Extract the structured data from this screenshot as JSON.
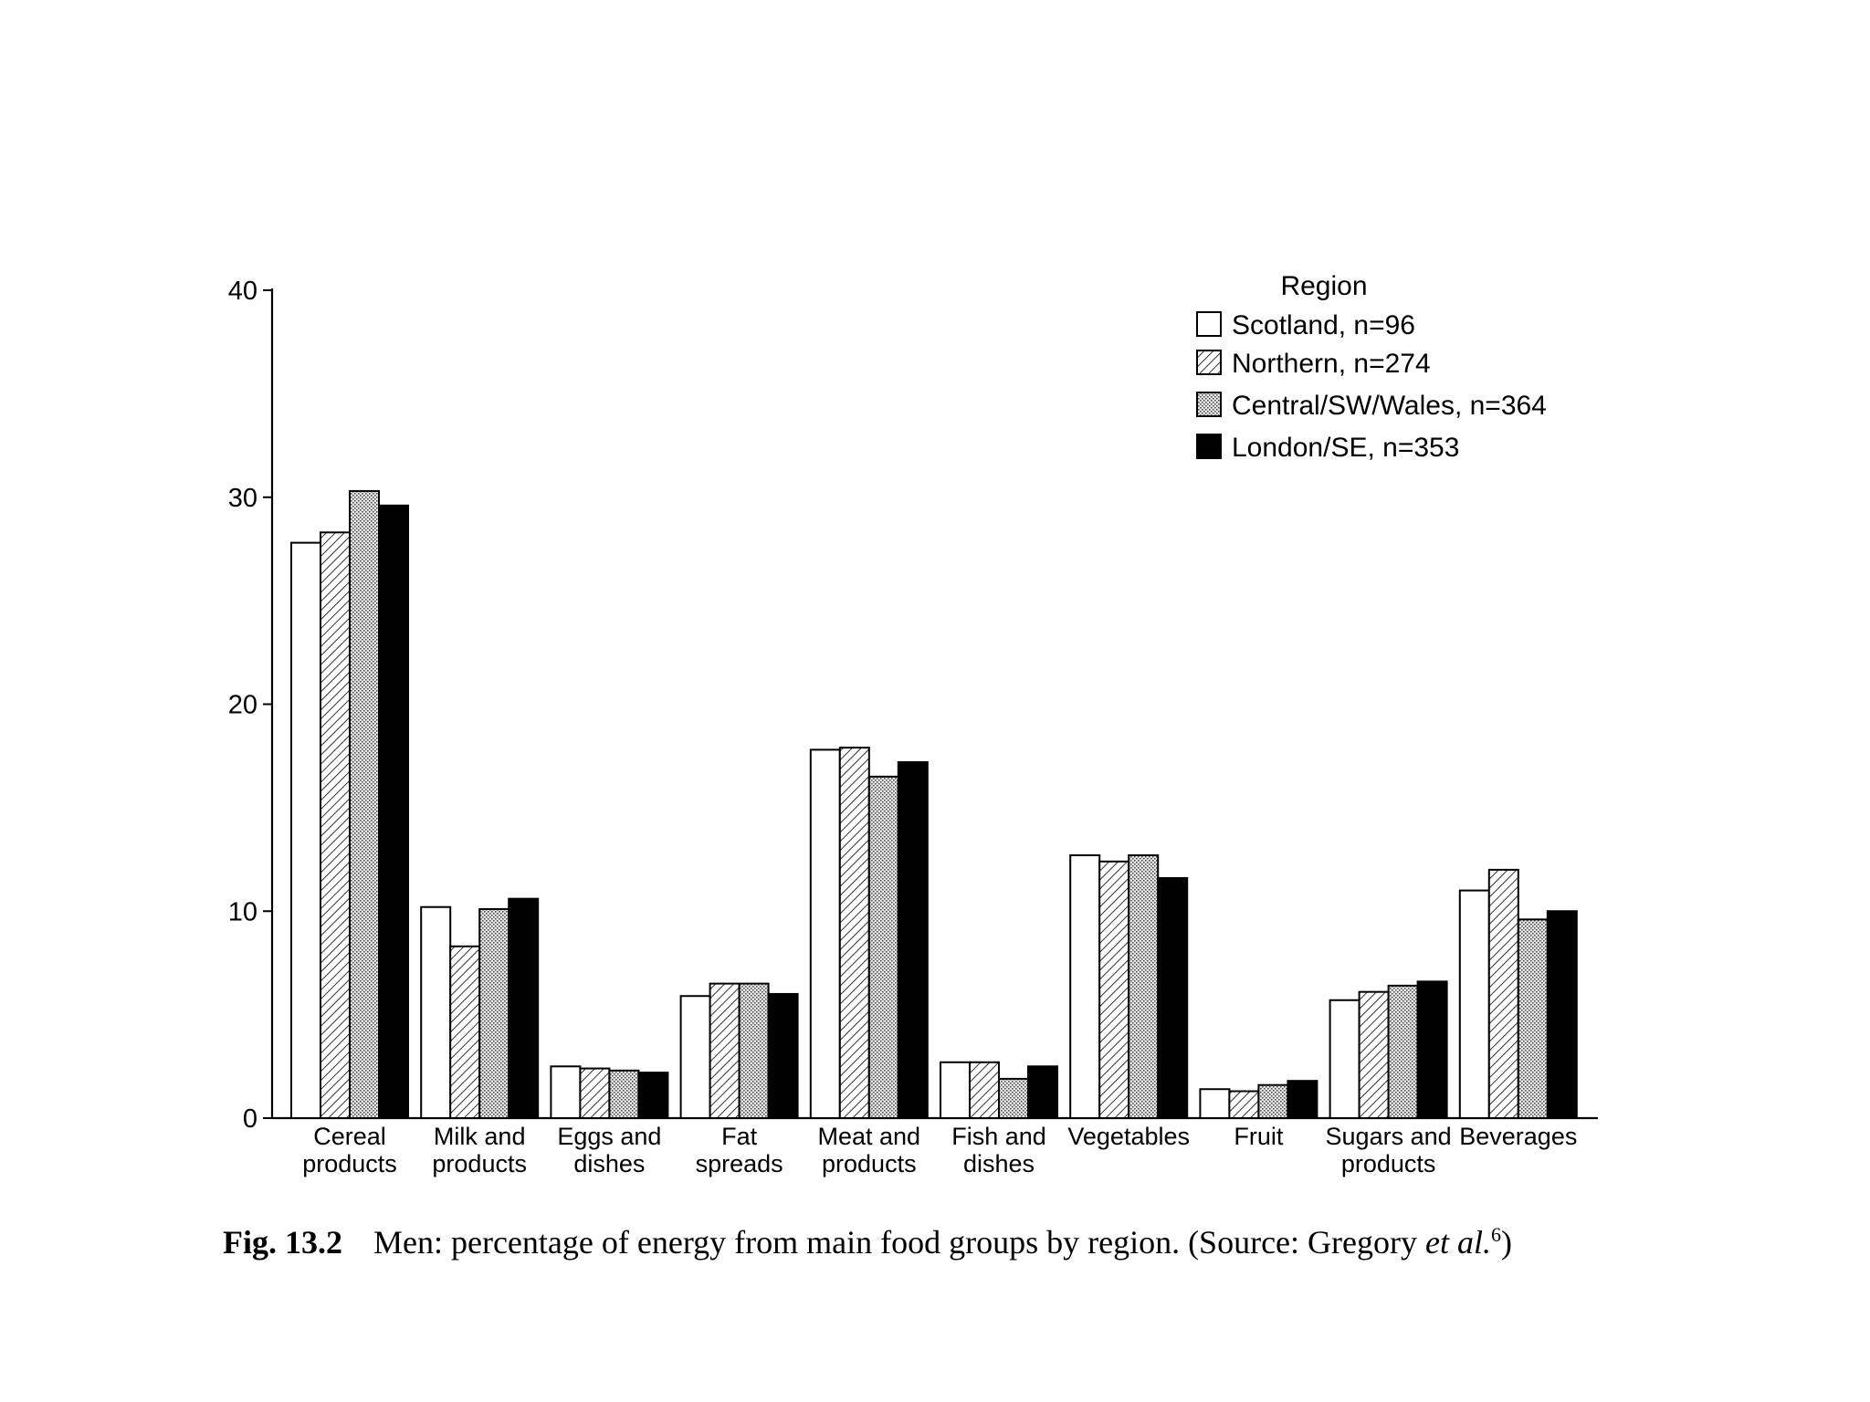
{
  "chart_data": {
    "type": "bar",
    "title": "",
    "xlabel": "",
    "ylabel": "",
    "ylim": [
      0,
      40
    ],
    "yticks": [
      0,
      10,
      20,
      30,
      40
    ],
    "categories": [
      [
        "Cereal",
        "products"
      ],
      [
        "Milk and",
        "products"
      ],
      [
        "Eggs and",
        "dishes"
      ],
      [
        "Fat",
        "spreads"
      ],
      [
        "Meat and",
        "products"
      ],
      [
        "Fish and",
        "dishes"
      ],
      [
        "Vegetables"
      ],
      [
        "Fruit"
      ],
      [
        "Sugars and",
        "products"
      ],
      [
        "Beverages"
      ]
    ],
    "series": [
      {
        "name": "Scotland, n=96",
        "pattern": "white",
        "values": [
          27.8,
          10.2,
          2.5,
          5.9,
          17.8,
          2.7,
          12.7,
          1.4,
          5.7,
          11.0
        ]
      },
      {
        "name": "Northern, n=274",
        "pattern": "hatch",
        "values": [
          28.3,
          8.3,
          2.4,
          6.5,
          17.9,
          2.7,
          12.4,
          1.3,
          6.1,
          12.0
        ]
      },
      {
        "name": "Central/SW/Wales, n=364",
        "pattern": "dots",
        "values": [
          30.3,
          10.1,
          2.3,
          6.5,
          16.5,
          1.9,
          12.7,
          1.6,
          6.4,
          9.6
        ]
      },
      {
        "name": "London/SE, n=353",
        "pattern": "black",
        "values": [
          29.6,
          10.6,
          2.2,
          6.0,
          17.2,
          2.5,
          11.6,
          1.8,
          6.6,
          10.0
        ]
      }
    ],
    "legend": {
      "title": "Region",
      "position": "top-right"
    }
  },
  "caption": {
    "label": "Fig. 13.2",
    "text": "Men: percentage of energy from main food groups by region. (Source: Gregory ",
    "italic": "et al.",
    "superscript": "6",
    "close": ")"
  },
  "colors": {
    "ink": "#000000",
    "paper": "#ffffff"
  }
}
